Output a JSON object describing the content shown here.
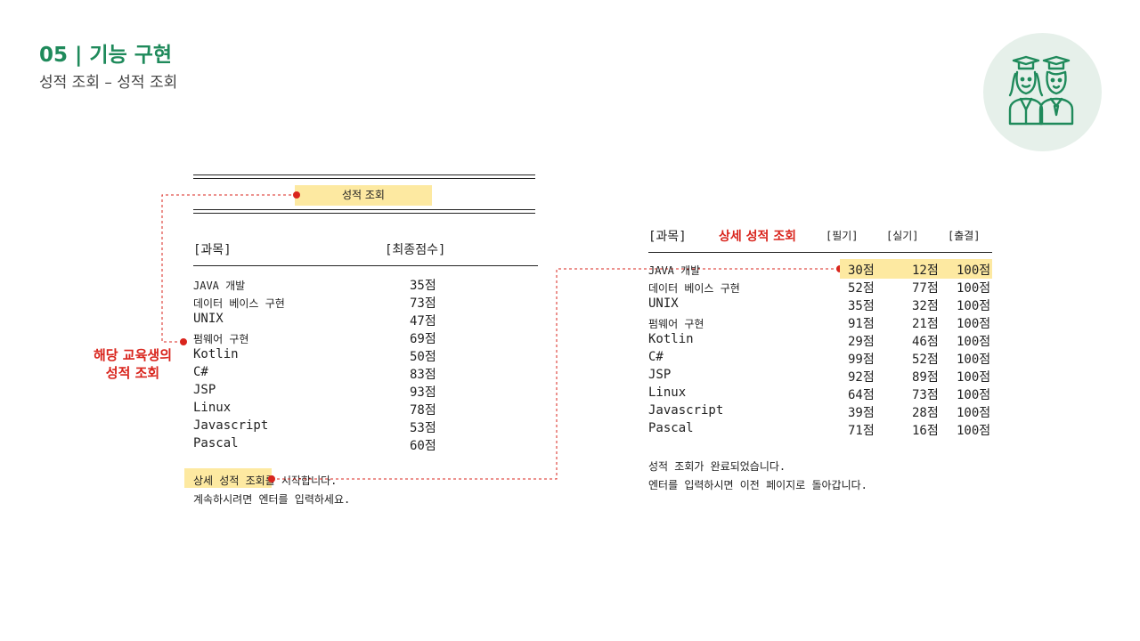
{
  "header": {
    "title": "05 | 기능 구현",
    "subtitle": "성적 조회 – 성적 조회"
  },
  "left_panel": {
    "menu_title": "성적 조회",
    "col_subject": "[과목]",
    "col_score": "[최종점수]",
    "rows": [
      {
        "subject": "JAVA 개발",
        "score": "35점"
      },
      {
        "subject": "데이터 베이스 구현",
        "score": "73점"
      },
      {
        "subject": "UNIX",
        "score": "47점"
      },
      {
        "subject": "펌웨어 구현",
        "score": "69점"
      },
      {
        "subject": "Kotlin",
        "score": "50점"
      },
      {
        "subject": "C#",
        "score": "83점"
      },
      {
        "subject": "JSP",
        "score": "93점"
      },
      {
        "subject": "Linux",
        "score": "78점"
      },
      {
        "subject": "Javascript",
        "score": "53점"
      },
      {
        "subject": "Pascal",
        "score": "60점"
      }
    ],
    "message_line1": "상세 성적 조회를 시작합니다.",
    "message_line2": "계속하시려면 엔터를 입력하세요."
  },
  "annotation": {
    "line1": "해당 교육생의",
    "line2": "성적 조회"
  },
  "right_panel": {
    "col_subject": "[과목]",
    "heading": "상세 성적 조회",
    "col_written": "[필기]",
    "col_practical": "[실기]",
    "col_attendance": "[출결]",
    "rows": [
      {
        "subject": "JAVA 개발",
        "written": "30점",
        "practical": "12점",
        "attendance": "100점"
      },
      {
        "subject": "데이터 베이스 구현",
        "written": "52점",
        "practical": "77점",
        "attendance": "100점"
      },
      {
        "subject": "UNIX",
        "written": "35점",
        "practical": "32점",
        "attendance": "100점"
      },
      {
        "subject": "펌웨어 구현",
        "written": "91점",
        "practical": "21점",
        "attendance": "100점"
      },
      {
        "subject": "Kotlin",
        "written": "29점",
        "practical": "46점",
        "attendance": "100점"
      },
      {
        "subject": "C#",
        "written": "99점",
        "practical": "52점",
        "attendance": "100점"
      },
      {
        "subject": "JSP",
        "written": "92점",
        "practical": "89점",
        "attendance": "100점"
      },
      {
        "subject": "Linux",
        "written": "64점",
        "practical": "73점",
        "attendance": "100점"
      },
      {
        "subject": "Javascript",
        "written": "39점",
        "practical": "28점",
        "attendance": "100점"
      },
      {
        "subject": "Pascal",
        "written": "71점",
        "practical": "16점",
        "attendance": "100점"
      }
    ],
    "message_line1": "성적 조회가 완료되었습니다.",
    "message_line2": "엔터를 입력하시면 이전 페이지로 돌아갑니다."
  },
  "colors": {
    "accent": "#1f8a5b",
    "highlight": "#fde9a1",
    "annotation": "#d9251d",
    "icon_bg": "#e6f0ea"
  },
  "icon": "graduates-icon"
}
